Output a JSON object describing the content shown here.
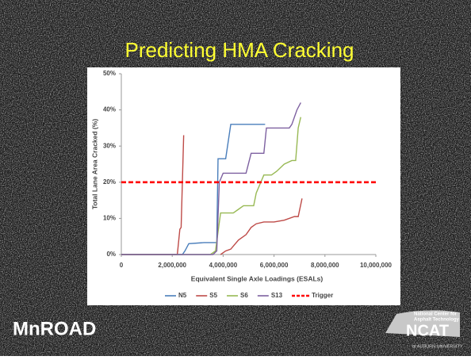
{
  "chart_data": {
    "type": "line",
    "title": "Predicting HMA Cracking",
    "x_label": "Equivalent Single Axle Loadings (ESALs)",
    "y_label": "Total Lane Area Cracked (%)",
    "xlim": [
      0,
      10000000
    ],
    "xticks": [
      0,
      {
        "value": 2000000,
        "label": "2,000,000"
      },
      {
        "value": 4000000,
        "label": "4,000,000"
      },
      {
        "value": 6000000,
        "label": "6,000,000"
      },
      {
        "value": 8000000,
        "label": "8,000,000"
      },
      {
        "value": 10000000,
        "label": "10,000,000"
      }
    ],
    "ylim": [
      0,
      50
    ],
    "yticks": [
      {
        "value": 0,
        "label": "0%"
      },
      {
        "value": 10,
        "label": "10%"
      },
      {
        "value": 20,
        "label": "20%"
      },
      {
        "value": 30,
        "label": "30%"
      },
      {
        "value": 40,
        "label": "40%"
      },
      {
        "value": 50,
        "label": "50%"
      }
    ],
    "grid": false,
    "legend": "bottom",
    "series": [
      {
        "name": "N5",
        "color": "#4a7ebb",
        "dashed": false,
        "x": [
          0,
          2400000,
          2500000,
          2650000,
          3250000,
          3750000,
          3800000,
          4100000,
          4300000,
          5650000
        ],
        "values": [
          0,
          0,
          1,
          3,
          3.3,
          3.3,
          26.5,
          26.5,
          36,
          36
        ]
      },
      {
        "name": "S5",
        "color": "#be4b48",
        "dashed": false,
        "x": [
          0,
          2200000,
          2300000,
          2350000,
          2450000,
          null,
          3900000,
          4100000,
          4300000,
          4600000,
          4900000,
          5100000,
          5300000,
          5600000,
          6000000,
          6400000,
          6800000,
          6950000,
          7100000
        ],
        "values": [
          0,
          0,
          7,
          7.5,
          33,
          null,
          0,
          1,
          1.5,
          4,
          5.5,
          7.5,
          8.5,
          9,
          9,
          9.5,
          10.5,
          10.5,
          15.5
        ]
      },
      {
        "name": "S6",
        "color": "#98b954",
        "dashed": false,
        "x": [
          0,
          3500000,
          3700000,
          3900000,
          4400000,
          4600000,
          4800000,
          5200000,
          5300000,
          5600000,
          5900000,
          6100000,
          6400000,
          6700000,
          6850000,
          6950000,
          7050000
        ],
        "values": [
          0,
          0,
          1,
          11.5,
          11.5,
          12.5,
          13.5,
          13.5,
          17,
          22,
          22,
          23,
          25,
          26,
          26,
          35,
          38
        ]
      },
      {
        "name": "S13",
        "color": "#7d60a0",
        "dashed": false,
        "x": [
          0,
          3600000,
          3750000,
          3850000,
          4000000,
          4900000,
          5100000,
          5600000,
          5700000,
          6600000,
          6700000,
          6900000,
          7050000
        ],
        "values": [
          0,
          0,
          1,
          20,
          22.5,
          22.5,
          28,
          28,
          35,
          35,
          36,
          40,
          42
        ]
      },
      {
        "name": "Trigger",
        "color": "#ff0000",
        "dashed": true,
        "x": [
          0,
          10000000
        ],
        "values": [
          20,
          20
        ]
      }
    ]
  },
  "logos": {
    "left": "MnROAD",
    "right_lines": [
      "National Center for",
      "Asphalt Technology"
    ],
    "right_name": "NCAT",
    "right_sub": "at AUBURN UNIVERSITY"
  }
}
